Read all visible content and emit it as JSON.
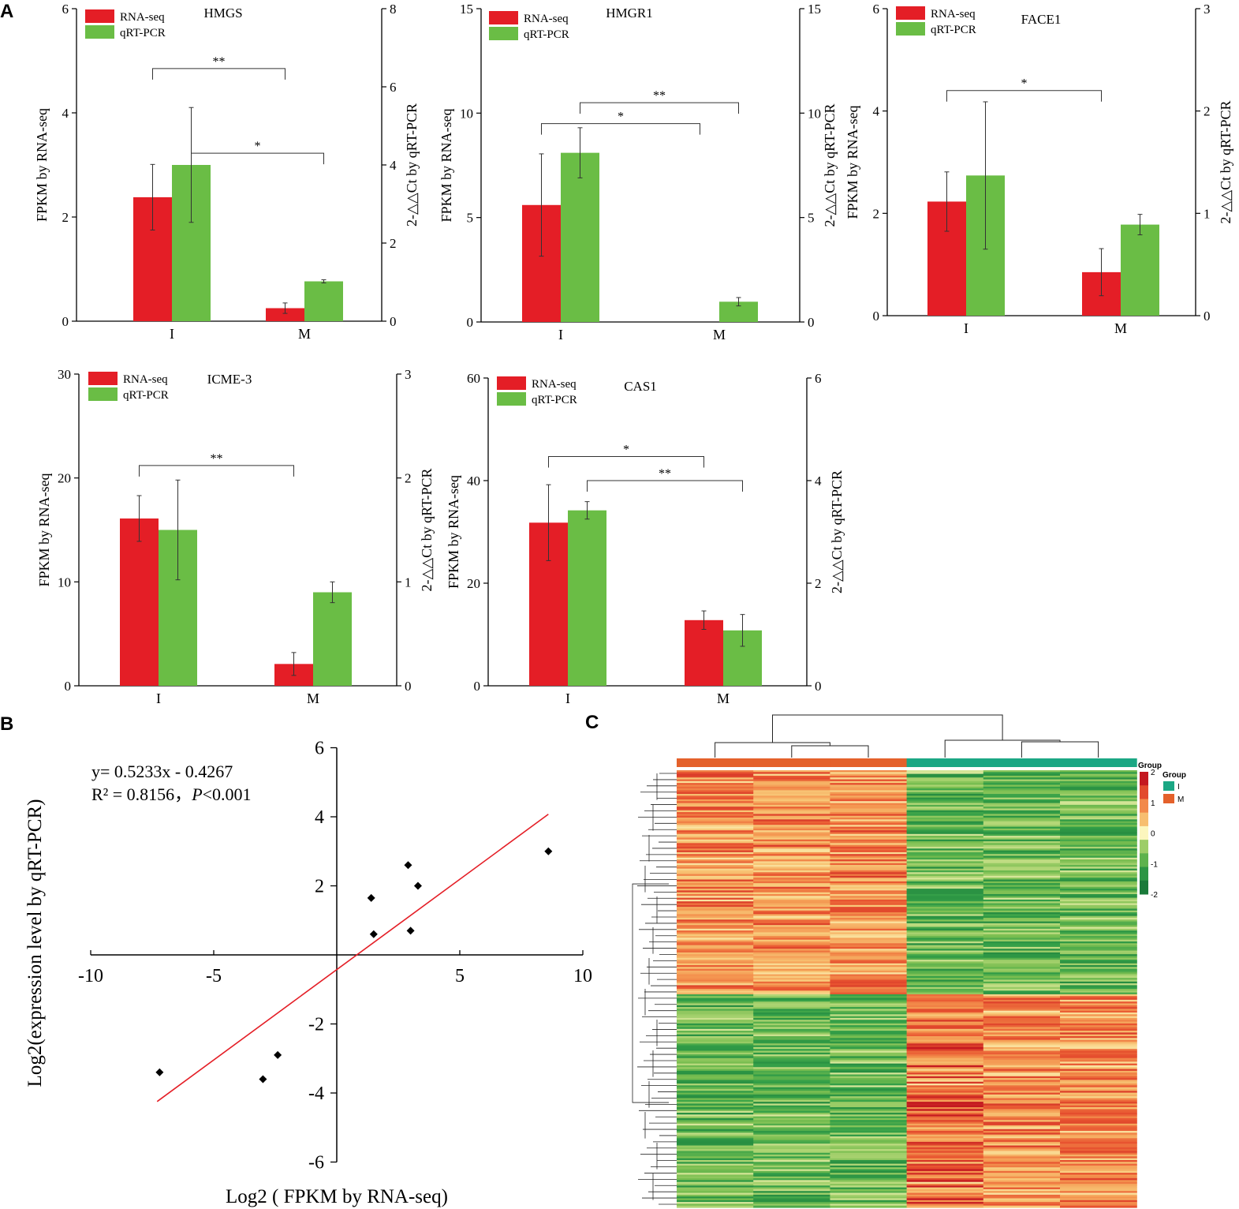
{
  "panel_labels": {
    "a": "A",
    "b": "B",
    "c": "C"
  },
  "colors": {
    "rna": "#e41e26",
    "qpcr": "#6abd45",
    "group_I": "#1ba784",
    "group_M": "#e4612b",
    "trend": "#e41e26"
  },
  "chart_data": [
    {
      "type": "bar",
      "title": "HMGS",
      "categories": [
        "I",
        "M"
      ],
      "ylabel_left": "FPKM by RNA-seq",
      "ylabel_right": "2-△△Ct by qRT-PCR",
      "ylim_left": [
        0,
        6
      ],
      "yticks_left": [
        0,
        2,
        4,
        6
      ],
      "ylim_right": [
        0,
        8
      ],
      "yticks_right": [
        0,
        2,
        4,
        6,
        8
      ],
      "series": [
        {
          "name": "RNA-seq",
          "axis": "left",
          "values": [
            2.38,
            0.25
          ],
          "errors": [
            0.63,
            0.1
          ]
        },
        {
          "name": "qRT-PCR",
          "axis": "right",
          "values": [
            4.0,
            1.02
          ],
          "errors": [
            1.47,
            0.04
          ]
        }
      ],
      "significance": [
        {
          "label": "**",
          "from": "I.RNA-seq",
          "to": "M.RNA-seq",
          "level": 4.85
        },
        {
          "label": "*",
          "from": "I.qRT-PCR",
          "to": "M.qRT-PCR",
          "level": 4.3
        }
      ]
    },
    {
      "type": "bar",
      "title": "HMGR1",
      "categories": [
        "I",
        "M"
      ],
      "ylabel_left": "FPKM by RNA-seq",
      "ylabel_right": "2-△△Ct by qRT-PCR",
      "ylim_left": [
        0,
        15
      ],
      "yticks_left": [
        0,
        5,
        10,
        15
      ],
      "ylim_right": [
        0,
        15
      ],
      "yticks_right": [
        0,
        5,
        10,
        15
      ],
      "series": [
        {
          "name": "RNA-seq",
          "axis": "left",
          "values": [
            5.6,
            0
          ],
          "errors": [
            2.45,
            0
          ]
        },
        {
          "name": "qRT-PCR",
          "axis": "right",
          "values": [
            8.1,
            0.97
          ],
          "errors": [
            1.2,
            0.2
          ]
        }
      ],
      "significance": [
        {
          "label": "*",
          "from": "I.RNA-seq",
          "to": "M.RNA-seq",
          "level": 9.5
        },
        {
          "label": "**",
          "from": "I.qRT-PCR",
          "to": "M.qRT-PCR",
          "level": 10.5
        }
      ]
    },
    {
      "type": "bar",
      "title": "FACE1",
      "categories": [
        "I",
        "M"
      ],
      "ylabel_left": "FPKM by RNA-seq",
      "ylabel_right": "2-△△Ct by qRT-PCR",
      "ylim_left": [
        0,
        6
      ],
      "yticks_left": [
        0,
        2,
        4,
        6
      ],
      "ylim_right": [
        0,
        3
      ],
      "yticks_right": [
        0,
        1,
        2,
        3
      ],
      "series": [
        {
          "name": "RNA-seq",
          "axis": "left",
          "values": [
            2.23,
            0.85
          ],
          "errors": [
            0.58,
            0.46
          ]
        },
        {
          "name": "qRT-PCR",
          "axis": "right",
          "values": [
            1.37,
            0.89
          ],
          "errors": [
            0.72,
            0.1
          ]
        }
      ],
      "significance": [
        {
          "label": "*",
          "from": "I.RNA-seq",
          "to": "M.RNA-seq",
          "level": 4.4
        }
      ]
    },
    {
      "type": "bar",
      "title": "ICME-3",
      "categories": [
        "I",
        "M"
      ],
      "ylabel_left": "FPKM by RNA-seq",
      "ylabel_right": "2-△△Ct by qRT-PCR",
      "ylim_left": [
        0,
        30
      ],
      "yticks_left": [
        0,
        10,
        20,
        30
      ],
      "ylim_right": [
        0,
        3
      ],
      "yticks_right": [
        0,
        1,
        2,
        3
      ],
      "series": [
        {
          "name": "RNA-seq",
          "axis": "left",
          "values": [
            16.1,
            2.1
          ],
          "errors": [
            2.2,
            1.1
          ]
        },
        {
          "name": "qRT-PCR",
          "axis": "right",
          "values": [
            1.5,
            0.9
          ],
          "errors": [
            0.48,
            0.1
          ]
        }
      ],
      "significance": [
        {
          "label": "**",
          "from": "I.RNA-seq",
          "to": "M.RNA-seq",
          "level": 21.2
        }
      ]
    },
    {
      "type": "bar",
      "title": "CAS1",
      "categories": [
        "I",
        "M"
      ],
      "ylabel_left": "FPKM by RNA-seq",
      "ylabel_right": "2-△△Ct by qRT-PCR",
      "ylim_left": [
        0,
        60
      ],
      "yticks_left": [
        0,
        20,
        40,
        60
      ],
      "ylim_right": [
        0,
        6
      ],
      "yticks_right": [
        0,
        2,
        4,
        6
      ],
      "series": [
        {
          "name": "RNA-seq",
          "axis": "left",
          "values": [
            31.8,
            12.8
          ],
          "errors": [
            7.4,
            1.8
          ]
        },
        {
          "name": "qRT-PCR",
          "axis": "right",
          "values": [
            3.42,
            1.08
          ],
          "errors": [
            0.17,
            0.31
          ]
        }
      ],
      "significance": [
        {
          "label": "*",
          "from": "I.RNA-seq",
          "to": "M.RNA-seq",
          "level": 44.7
        },
        {
          "label": "**",
          "from": "I.qRT-PCR",
          "to": "M.qRT-PCR",
          "level": 4.0
        }
      ]
    },
    {
      "type": "scatter",
      "xlabel": "Log2 (  FPKM by RNA-seq)",
      "ylabel": "Log2(expression level by qRT-PCR)",
      "xlim": [
        -10,
        10
      ],
      "xticks": [
        -10,
        -5,
        5,
        10
      ],
      "ylim": [
        -6,
        6
      ],
      "yticks": [
        -6,
        -4,
        -2,
        2,
        4,
        6
      ],
      "x": [
        -7.2,
        -3.0,
        -2.4,
        1.4,
        1.5,
        2.9,
        3.0,
        3.3,
        8.6
      ],
      "y": [
        -3.4,
        -3.6,
        -2.9,
        1.65,
        0.6,
        2.6,
        0.7,
        2.0,
        3.0
      ],
      "fit": {
        "slope": 0.5233,
        "intercept": -0.4267,
        "x_range": [
          -7.3,
          8.6
        ]
      },
      "equation": "y= 0.5233x - 0.4267",
      "r2_label": "R² = 0.8156，",
      "p_label": "P",
      "p_value": "<0.001"
    },
    {
      "type": "heatmap",
      "rows": 240,
      "columns": 6,
      "column_groups": [
        "M",
        "M",
        "M",
        "I",
        "I",
        "I"
      ],
      "scale": {
        "title": "Group",
        "min": -2,
        "max": 2,
        "ticks": [
          2,
          1,
          0,
          -1,
          -2
        ]
      },
      "legend": {
        "title": "Group",
        "entries": [
          "I",
          "M"
        ]
      }
    }
  ]
}
